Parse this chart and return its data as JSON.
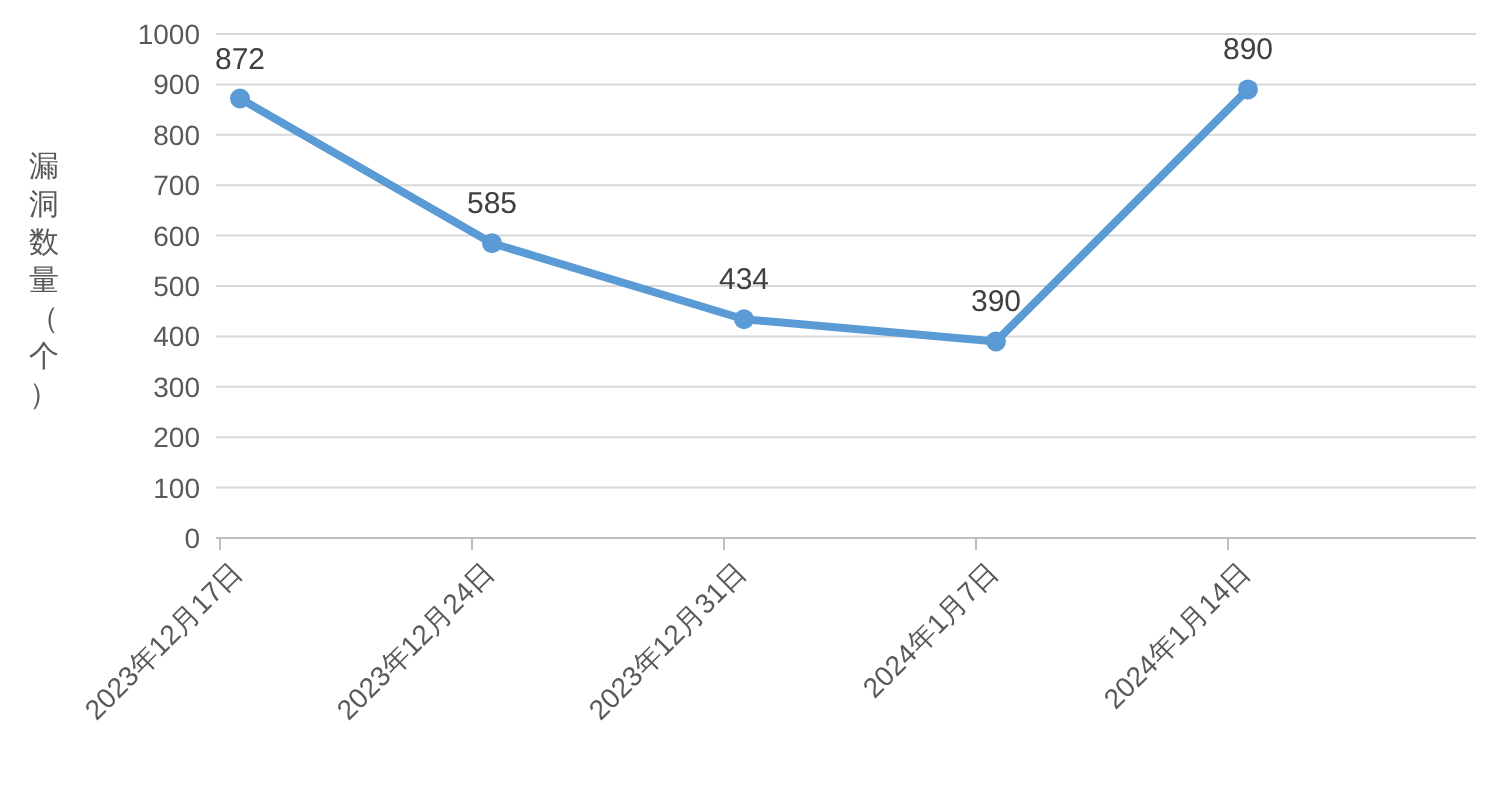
{
  "chart_data": {
    "type": "line",
    "ylabel": "漏洞数量（个）",
    "categories": [
      "2023年12月17日",
      "2023年12月24日",
      "2023年12月31日",
      "2024年1月7日",
      "2024年1月14日"
    ],
    "series": [
      {
        "color": "#5b9bd5",
        "values": [
          872,
          585,
          434,
          390,
          890
        ]
      }
    ],
    "ylim": [
      0,
      1000
    ],
    "yticks": [
      0,
      100,
      200,
      300,
      400,
      500,
      600,
      700,
      800,
      900,
      1000
    ],
    "grid": "y",
    "marker": "circle",
    "line_style": "solid",
    "data_labels": true
  }
}
